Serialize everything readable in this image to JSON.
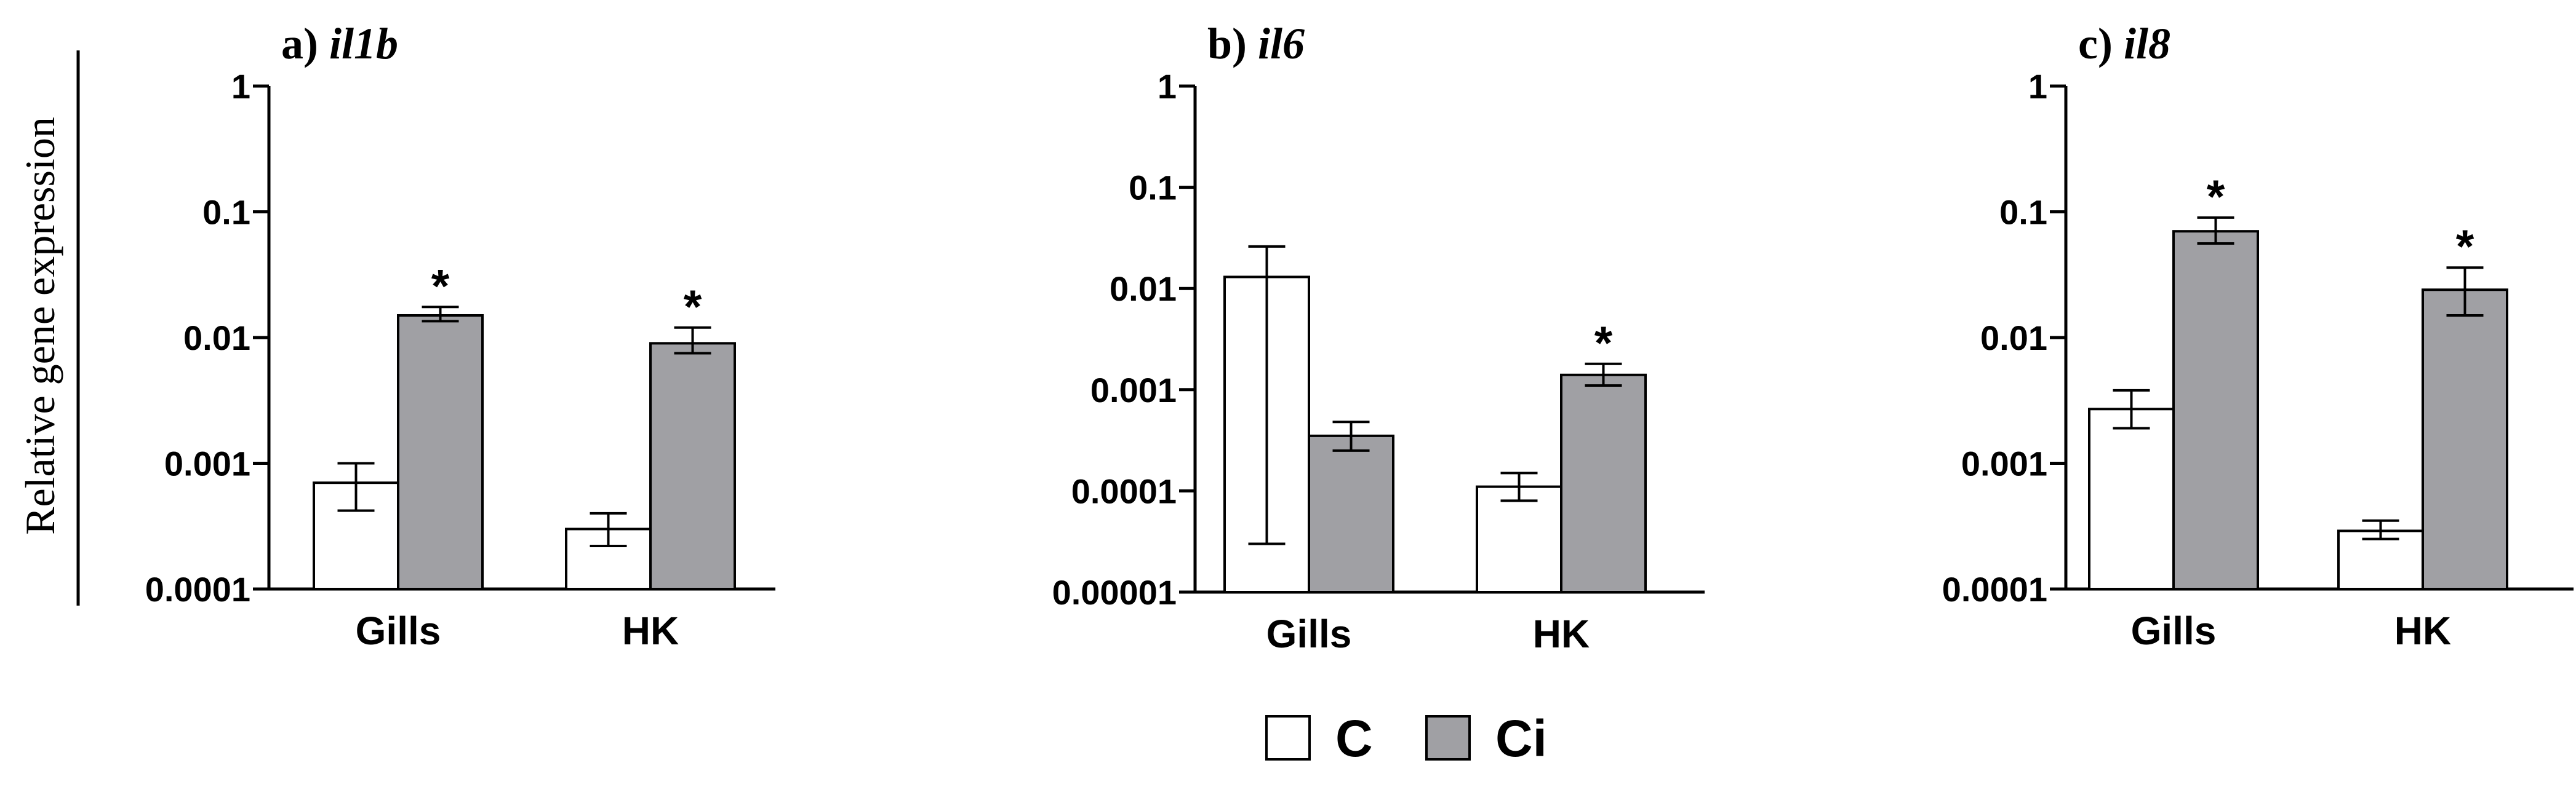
{
  "figure": {
    "ylabel": "Relative gene expression",
    "legend": [
      {
        "label": "C",
        "color": "#ffffff"
      },
      {
        "label": "Ci",
        "color": "#a0a0a4"
      }
    ]
  },
  "chart_data": [
    {
      "type": "bar",
      "title_prefix": "a) ",
      "title_gene": "il1b",
      "yscale": "log",
      "ylim": [
        0.0001,
        1
      ],
      "yticks": [
        "1",
        "0.1",
        "0.01",
        "0.001",
        "0.0001"
      ],
      "categories": [
        "Gills",
        "HK"
      ],
      "series": [
        {
          "name": "C",
          "values": [
            0.0007,
            0.0003
          ],
          "err_low": [
            0.00042,
            0.00022
          ],
          "err_high": [
            0.001,
            0.0004
          ],
          "sig": [
            false,
            false
          ]
        },
        {
          "name": "Ci",
          "values": [
            0.015,
            0.009
          ],
          "err_low": [
            0.0135,
            0.0075
          ],
          "err_high": [
            0.0175,
            0.012
          ],
          "sig": [
            true,
            true
          ]
        }
      ]
    },
    {
      "type": "bar",
      "title_prefix": "b) ",
      "title_gene": "il6",
      "yscale": "log",
      "ylim": [
        1e-05,
        1
      ],
      "yticks": [
        "1",
        "0.1",
        "0.01",
        "0.001",
        "0.0001",
        "0.00001"
      ],
      "categories": [
        "Gills",
        "HK"
      ],
      "series": [
        {
          "name": "C",
          "values": [
            0.013,
            0.00011
          ],
          "err_low": [
            3e-05,
            8e-05
          ],
          "err_high": [
            0.026,
            0.00015
          ],
          "sig": [
            false,
            false
          ]
        },
        {
          "name": "Ci",
          "values": [
            0.00035,
            0.0014
          ],
          "err_low": [
            0.00025,
            0.0011
          ],
          "err_high": [
            0.00048,
            0.0018
          ],
          "sig": [
            false,
            true
          ]
        }
      ]
    },
    {
      "type": "bar",
      "title_prefix": "c) ",
      "title_gene": "il8",
      "yscale": "log",
      "ylim": [
        0.0001,
        1
      ],
      "yticks": [
        "1",
        "0.1",
        "0.01",
        "0.001",
        "0.0001"
      ],
      "categories": [
        "Gills",
        "HK"
      ],
      "series": [
        {
          "name": "C",
          "values": [
            0.0027,
            0.00029
          ],
          "err_low": [
            0.0019,
            0.00025
          ],
          "err_high": [
            0.0038,
            0.00035
          ],
          "sig": [
            false,
            false
          ]
        },
        {
          "name": "Ci",
          "values": [
            0.07,
            0.024
          ],
          "err_low": [
            0.056,
            0.015
          ],
          "err_high": [
            0.09,
            0.036
          ],
          "sig": [
            true,
            true
          ]
        }
      ]
    }
  ],
  "significance_marker": "*"
}
